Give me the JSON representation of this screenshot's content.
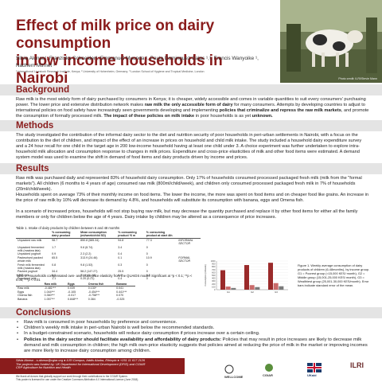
{
  "poster": {
    "title_line1": "Effect of milk price on dairy consumption",
    "title_line2": "in low income households in Nairobi",
    "authors": "Silvia Alonso¹, Franziska Schneider², Emmanuel Muunda ¹, Paula Dominguez-Salas ¹,³, Francis Wanyoike ¹, Nadhem Mtimet ¹",
    "affiliations": "¹ International Livestock Research Institute, Kenya; ² University of Hohenheim, Germany; ³ London School of Hygiene and Tropical Medicine, London",
    "photo_credit": "Photo credit: ILRI/Stevie Mann"
  },
  "background": {
    "heading": "Background",
    "text_a": "Raw milk is the most widely form of dairy purchased by consumers in Kenya; it is cheaper, widely accessible and comes in variable quantities to suit every consumers' purchasing power. The lower price and extensive distribution network makes ",
    "bold_1": "raw milk the only accessible form of dairy",
    "text_b": " for many consumers. Attempts by developing countries to adjust to international policies on food safety have increasingly seen governments developing and implementing ",
    "bold_2": "policies that criminalize and repress the raw milk markets",
    "text_c": ", and promote the consumption of formally processed milk. ",
    "bold_3": "The impact of these policies on milk intake",
    "text_d": " in poor households is as yet ",
    "bold_4": "unknown."
  },
  "methods": {
    "heading": "Methods",
    "text": "The study investigated the contribution of the informal dairy sector to the diet and nutrition security of poor households in peri-urban settlements in Nairobi, with a focus on the contribution to the diet of children, and impact of the effect of an increase in prices on household and child milk intake. The study included a household dairy expenditure survey and a 24 hour recall for one child in the target age in 200 low-income household having at least one child under 3. A choice experiment was further undertaken to explore intra-household milk allocation and consumption response to changes in milk prices. Expenditure and cross-price elasticities of milk and other food items were estimated. A demand system model was used to examine the shift in demand of food items and dairy products driven by income and prices."
  },
  "results": {
    "heading": "Results",
    "p1": "Raw milk was purchased daily and represented 83% of household dairy consumption. Only 17% of households consumed processed packaged fresh milk (milk from the \"formal markets\"). All children (6 months to 4 years of age) consumed raw milk (800ml/child/week), and children only consumed processed packaged fresh milk in 7% of households (20ml/child/week).",
    "p2": "Households spent on average 73% of their monthly income on food items. The lower the income, the more was spent on food items and on cheaper food like grains. An increase in the price of raw milk by 10% will decrease its demand by 4.8%, and households will substitute its consumption with banana, eggs and Omena fish.",
    "p3": "In a scenario of increased prices, households will not stop buying raw milk, but may decrease the quantity purchased and replace it by other food items for either all the family members or only for children below the age of 4 years. Dairy intake by children may be altered as a consequence of price increases."
  },
  "table1": {
    "caption": "Table 1. Intake of dairy products by children between 6 and 48 months",
    "headers": [
      "",
      "% consuming dairy product",
      "Mean consumption (ml/week/child SD)",
      "% consuming product *6 m",
      "% consuming product at start 4th"
    ],
    "rows": [
      [
        "Unpacked raw milk",
        "98.7",
        "850.8 (585.34)",
        "94.8",
        "77.3",
        "INFORMAL SECTOR"
      ],
      [
        "Unpacked fermented milk (maziwa lala)",
        "1.7",
        "9.6 (6.74)",
        "3.4",
        "0",
        ""
      ],
      [
        "Unpacked yoghurt",
        "0.9",
        "2.3 (2.2)",
        "0.4",
        "0",
        ""
      ],
      [
        "Pasteurised packed whole milk",
        "65.5",
        "313.9 (24.46)",
        "0.1",
        "10.9",
        "FORMAL SECTOR"
      ],
      [
        "Fresh milk fermented milk (maziwa lala)",
        "0.8",
        "9.8 (1.53)",
        "0.3",
        "0",
        ""
      ],
      [
        "Packed yoghurt",
        "34.4",
        "58.2 (147.27)",
        "25.5",
        "0",
        ""
      ],
      [
        "UHT milk",
        "5.2",
        "21.9 (11.19)",
        "0.0",
        "4.8",
        ""
      ],
      [
        "Powdered milk",
        "1.1",
        "0.20 (0.21)",
        "0.4",
        "0",
        ""
      ]
    ]
  },
  "table2": {
    "caption": "Table 2. Households compensated own- and cross-price elasticity from the QUAIDS model. Significant at *p < 0.1; **p < 0.05; ***p < 0.01",
    "headers": [
      "",
      "Raw milk",
      "Eggs",
      "Omena fish",
      "Banana"
    ],
    "rows": [
      [
        "Raw milk",
        "-0.481***",
        "0.039",
        "0.130*",
        "0.041"
      ],
      [
        "Eggs",
        "1.044***",
        "-0.105",
        "-0.454***",
        "0.441***"
      ],
      [
        "Omena fish",
        "0.360***",
        "-0.017",
        "-0.758***",
        "0.070"
      ],
      [
        "Banana",
        "1.057***",
        "0.848***",
        "0.384",
        "-0.325"
      ]
    ]
  },
  "figure1": {
    "caption": "Figure 1. Weekly average consumption of dairy products of children (6-48months), by income group. G1 = Poorest group (<15,000 KES/ month), G2 = Middle group (15,001-25,000 KES/ month), G3 = Wealthiest group (25,001-30,000 KES/month). Error bars indicate standard error of the mean."
  },
  "chart_data": {
    "type": "bar",
    "categories": [
      "G1",
      "G2",
      "G3"
    ],
    "series": [
      {
        "name": "Raw milk",
        "values": [
          680,
          860,
          940
        ]
      },
      {
        "name": "Processed milk",
        "values": [
          110,
          160,
          230
        ]
      },
      {
        "name": "Other dairy",
        "values": [
          60,
          90,
          120
        ]
      }
    ],
    "ylabel": "Consumption (ml/week)",
    "ylim": [
      0,
      1000
    ],
    "yticks": [
      0,
      100,
      200,
      300,
      400,
      500,
      600,
      700,
      800,
      900,
      1000
    ],
    "colors": [
      "#9a2a2a",
      "#c96a6a",
      "#7a7a7a"
    ]
  },
  "conclusions": {
    "heading": "Conclusions",
    "items": [
      "Raw milk is consumed in poor households by preference and convenience.",
      "Children's weekly milk intake in peri-urban Nairobi is well below the recommended standards.",
      "In a budget-constrained scenario, households will reduce dairy consumption if prices increase over a certain ceiling."
    ],
    "item4_bold": "Policies in the dairy sector should facilitate availability and affordability of dairy products:",
    "item4_text": " Policies that may result in price increases are likely to decrease milk demand and milk consumption in children; the high milk own-price elasticity suggests that policies aimed at reducing the price of milk in the market or improving incomes are more likely to increase dairy consumption among children."
  },
  "footer": {
    "contact": "Silvia Alonso - s.alonso@cgiar.org ● ILRI Campus, Addis Ababa, Ethiopia ● +251 11 617 2126",
    "funding": "The projects was funded by: UK Department for International Development (DFID) and CGIAR",
    "crp": "CRP Agriculture for Nutrition and Health",
    "thanks": "We thank all donors that globally support our work through their contributions to the CGIAR System.",
    "license": "This poster is licensed for use under the Creative Commons Attribution 4.0 International Licence (June 2018).",
    "logo1": "WELLCOME",
    "logo2": "CGIAR",
    "logo3": "UKaid",
    "logo4": "ILRI"
  }
}
